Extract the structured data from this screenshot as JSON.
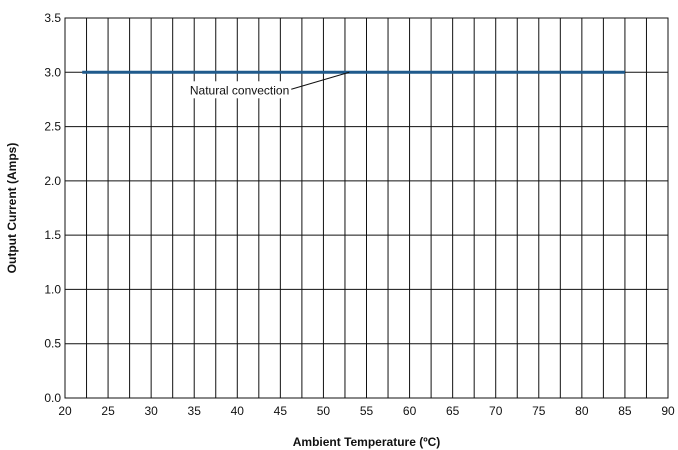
{
  "chart_data": {
    "type": "line",
    "title": "",
    "xlabel": "Ambient Temperature (ºC)",
    "ylabel": "Output Current (Amps)",
    "xlim": [
      20,
      90
    ],
    "ylim": [
      0,
      3.5
    ],
    "xticks": [
      20,
      25,
      30,
      35,
      40,
      45,
      50,
      55,
      60,
      65,
      70,
      75,
      80,
      85,
      90
    ],
    "yticks": [
      0.0,
      0.5,
      1.0,
      1.5,
      2.0,
      2.5,
      3.0,
      3.5
    ],
    "xtick_labels": [
      "20",
      "25",
      "30",
      "35",
      "40",
      "45",
      "50",
      "55",
      "60",
      "65",
      "70",
      "75",
      "80",
      "85",
      "90"
    ],
    "ytick_labels": [
      "0.0",
      "0.5",
      "1.0",
      "1.5",
      "2.0",
      "2.5",
      "3.0",
      "3.5"
    ],
    "grid": true,
    "series": [
      {
        "name": "Natural convection",
        "color": "#1f5a8c",
        "x": [
          22,
          85
        ],
        "y": [
          3.0,
          3.0
        ]
      }
    ],
    "annotations": [
      {
        "text": "Natural convection",
        "series_index": 0,
        "x": 53,
        "y": 3.0
      }
    ]
  }
}
